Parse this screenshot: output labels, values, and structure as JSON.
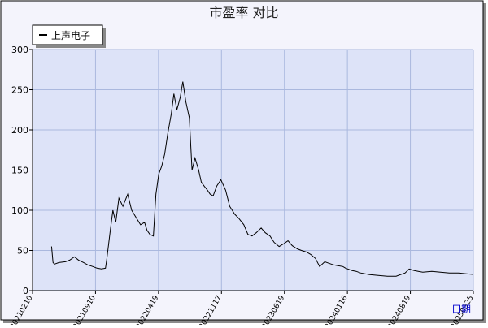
{
  "chart_data": {
    "type": "line",
    "title": "市盈率  对比",
    "xlabel": "日期",
    "ylabel": "",
    "legend_position": "top-left",
    "grid": true,
    "ylim": [
      0,
      300
    ],
    "y_ticks": [
      0,
      50,
      100,
      150,
      200,
      250,
      300
    ],
    "x_tick_labels": [
      "20210210",
      "20210910",
      "20220419",
      "20221117",
      "20230619",
      "20240116",
      "20240819",
      "20250325"
    ],
    "colors": {
      "outer_bg": "#f4f4fc",
      "plot_bg": "#dde3f8",
      "grid": "#aab8de",
      "axis": "#000000",
      "line": "#000000",
      "xlabel": "#0000cc"
    },
    "series": [
      {
        "name": "上声电子",
        "x": [
          "20210415",
          "20210420",
          "20210425",
          "20210510",
          "20210601",
          "20210615",
          "20210701",
          "20210715",
          "20210801",
          "20210815",
          "20210901",
          "20210915",
          "20211001",
          "20211015",
          "20211020",
          "20211101",
          "20211110",
          "20211120",
          "20211201",
          "20211215",
          "20220101",
          "20220115",
          "20220201",
          "20220215",
          "20220301",
          "20220310",
          "20220320",
          "20220401",
          "20220410",
          "20220420",
          "20220430",
          "20220510",
          "20220520",
          "20220601",
          "20220610",
          "20220620",
          "20220701",
          "20220710",
          "20220720",
          "20220801",
          "20220810",
          "20220820",
          "20220901",
          "20220910",
          "20220920",
          "20221001",
          "20221010",
          "20221020",
          "20221101",
          "20221115",
          "20221201",
          "20221215",
          "20230101",
          "20230115",
          "20230201",
          "20230215",
          "20230301",
          "20230315",
          "20230401",
          "20230415",
          "20230501",
          "20230515",
          "20230601",
          "20230615",
          "20230701",
          "20230715",
          "20230801",
          "20230815",
          "20230901",
          "20230915",
          "20231001",
          "20231015",
          "20231101",
          "20231115",
          "20231201",
          "20231215",
          "20240101",
          "20240110",
          "20240125",
          "20240201",
          "20240215",
          "20240301",
          "20240401",
          "20240501",
          "20240601",
          "20240701",
          "20240801",
          "20240815",
          "20240901",
          "20240915",
          "20241001",
          "20241101",
          "20241201",
          "20250101",
          "20250201",
          "20250301",
          "20250401"
        ],
        "y": [
          55,
          35,
          33,
          35,
          36,
          38,
          42,
          38,
          35,
          32,
          30,
          28,
          27,
          28,
          40,
          75,
          100,
          85,
          115,
          105,
          120,
          100,
          90,
          82,
          85,
          75,
          70,
          68,
          120,
          145,
          155,
          170,
          195,
          220,
          245,
          225,
          240,
          260,
          235,
          215,
          150,
          165,
          150,
          135,
          130,
          125,
          120,
          118,
          130,
          138,
          125,
          105,
          95,
          90,
          82,
          70,
          68,
          72,
          78,
          72,
          68,
          60,
          55,
          58,
          62,
          56,
          52,
          50,
          48,
          45,
          40,
          30,
          36,
          34,
          32,
          31,
          30,
          28,
          26,
          25,
          24,
          22,
          20,
          19,
          18,
          18,
          22,
          27,
          25,
          24,
          23,
          24,
          23,
          22,
          22,
          21,
          20
        ]
      }
    ]
  }
}
